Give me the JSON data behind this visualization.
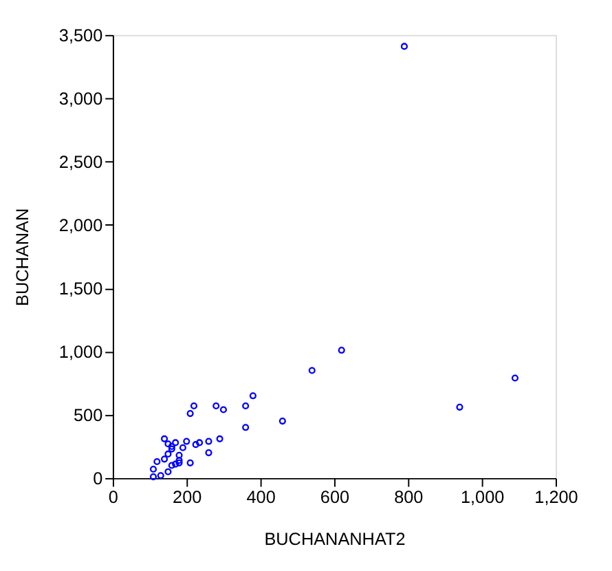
{
  "chart_data": {
    "type": "scatter",
    "xlabel": "BUCHANANHAT2",
    "ylabel": "BUCHANAN",
    "x": [
      790,
      620,
      540,
      1090,
      940,
      380,
      460,
      360,
      360,
      280,
      300,
      220,
      210,
      290,
      260,
      260,
      235,
      225,
      200,
      190,
      170,
      140,
      150,
      150,
      160,
      160,
      210,
      180,
      180,
      180,
      170,
      160,
      140,
      150,
      120,
      110,
      110,
      130
    ],
    "values": [
      3410,
      1010,
      850,
      790,
      560,
      650,
      450,
      570,
      400,
      570,
      540,
      570,
      510,
      310,
      290,
      200,
      280,
      265,
      290,
      240,
      280,
      310,
      190,
      270,
      250,
      230,
      120,
      180,
      140,
      120,
      110,
      100,
      150,
      50,
      130,
      70,
      10,
      20
    ],
    "color": "#0000ff",
    "marker": "circle",
    "xlim": [
      0,
      1200
    ],
    "xticks": [
      0,
      {
        "value": 200,
        "label": "200"
      },
      400,
      600,
      800,
      {
        "value": 1000,
        "label": "1,000"
      },
      {
        "value": 1200,
        "label": "1,200"
      }
    ],
    "ylim": [
      0,
      3500
    ],
    "yticks": [
      0,
      500,
      {
        "value": 1000,
        "label": "1,000"
      },
      {
        "value": 1500,
        "label": "1,500"
      },
      {
        "value": 2000,
        "label": "2,000"
      },
      {
        "value": 2500,
        "label": "2,500"
      },
      {
        "value": 3000,
        "label": "3,000"
      },
      {
        "value": 3500,
        "label": "3,500"
      }
    ],
    "grid": false
  }
}
